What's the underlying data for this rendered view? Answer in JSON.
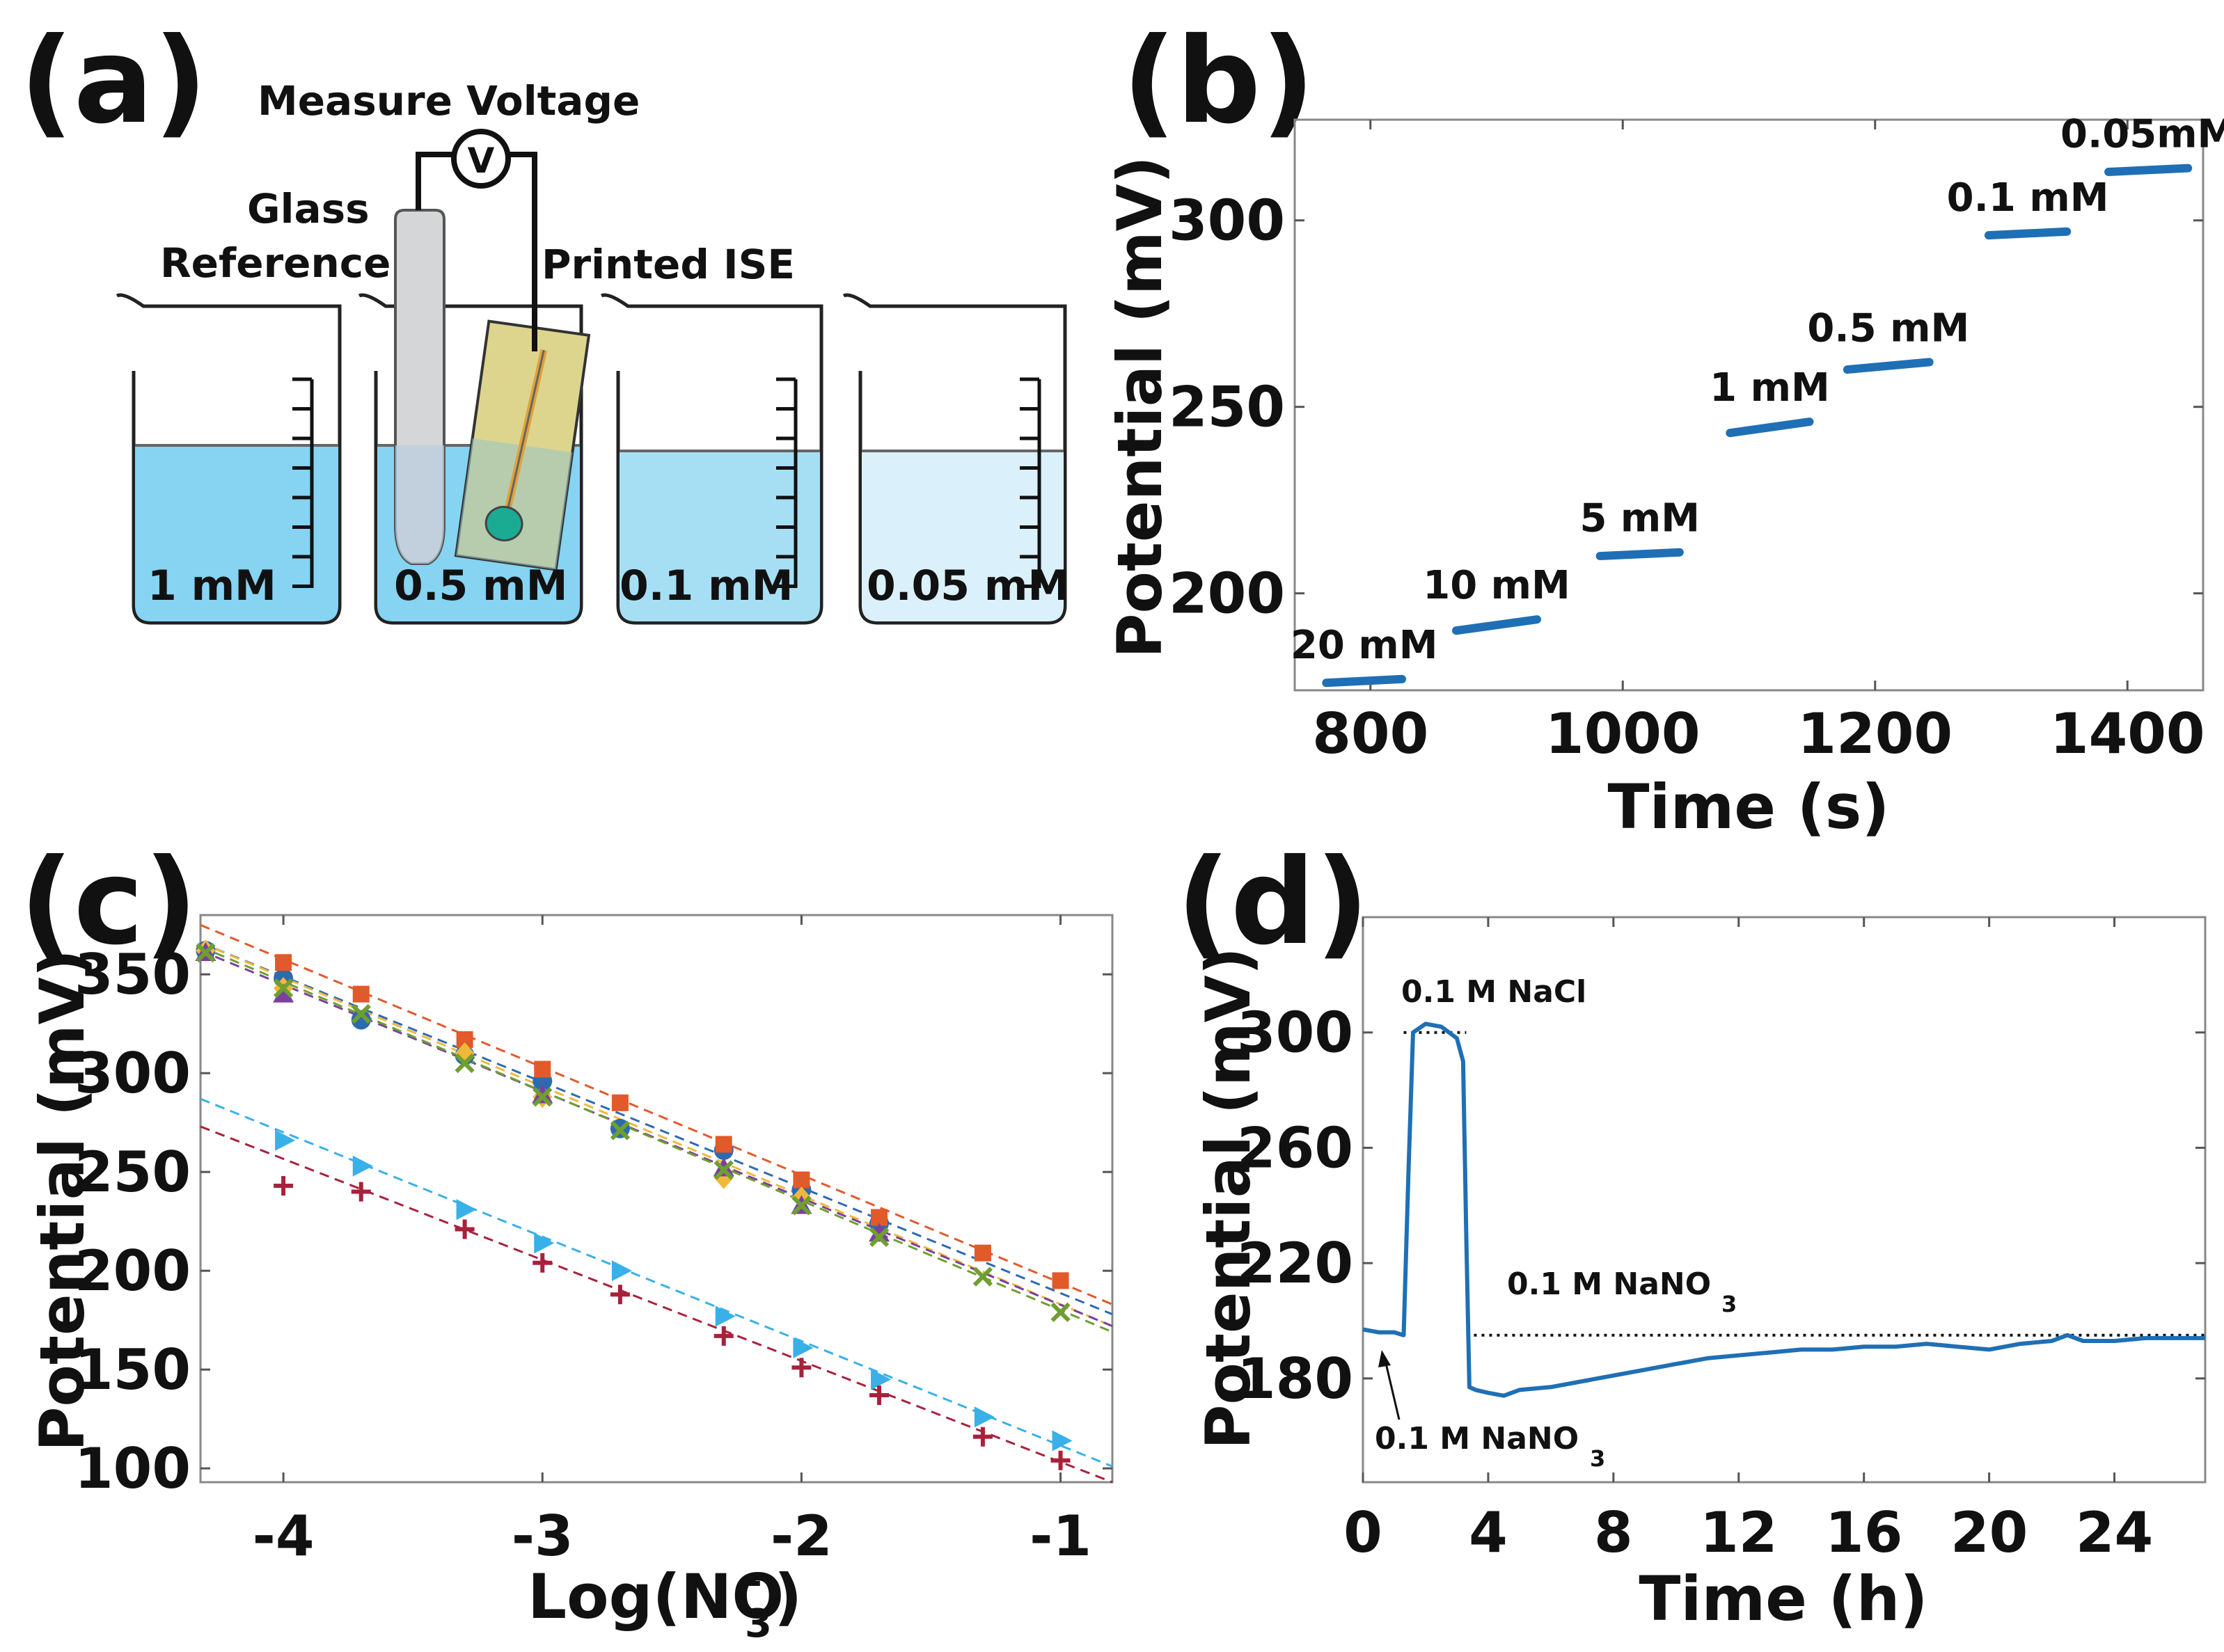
{
  "panels": {
    "a": {
      "letter": "(a)"
    },
    "b": {
      "letter": "(b)"
    },
    "c": {
      "letter": "(c)"
    },
    "d": {
      "letter": "(d)"
    }
  },
  "diagram": {
    "measure_label": "Measure Voltage",
    "voltmeter_symbol": "V",
    "glass_label_1": "Glass",
    "glass_label_2": "Reference",
    "ise_label": "Printed ISE",
    "beakers": [
      "1 mM",
      "0.5 mM",
      "0.1 mM",
      "0.05 mM"
    ],
    "colors": {
      "solution_dark": "#86d3f2",
      "solution_mid": "#a6dff4",
      "solution_light": "#daf1fb",
      "electrode": "#d5d6d8",
      "ise_body": "#ddd58e",
      "ise_tip": "#1bab93"
    }
  },
  "chart_data": [
    {
      "panel": "b",
      "type": "line",
      "xlabel": "Time (s)",
      "ylabel": "Potential (mV)",
      "xlim": [
        740,
        1460
      ],
      "ylim": [
        174,
        327
      ],
      "xticks": [
        800,
        1000,
        1200,
        1400
      ],
      "yticks": [
        200,
        250,
        300
      ],
      "color": "#1f6fb5",
      "segments": [
        {
          "label": "20 mM",
          "x": [
            765,
            825
          ],
          "y": [
            176,
            177
          ]
        },
        {
          "label": "10 mM",
          "x": [
            868,
            932
          ],
          "y": [
            190,
            193
          ]
        },
        {
          "label": "5 mM",
          "x": [
            982,
            1045
          ],
          "y": [
            210,
            211
          ]
        },
        {
          "label": "1 mM",
          "x": [
            1085,
            1148
          ],
          "y": [
            243,
            246
          ]
        },
        {
          "label": "0.5 mM",
          "x": [
            1178,
            1243
          ],
          "y": [
            260,
            262
          ]
        },
        {
          "label": "0.1 mM",
          "x": [
            1290,
            1352
          ],
          "y": [
            296,
            297
          ]
        },
        {
          "label": "0.05mM",
          "x": [
            1385,
            1448
          ],
          "y": [
            313,
            314
          ]
        }
      ]
    },
    {
      "panel": "c",
      "type": "scatter",
      "xlabel": "Log(NO",
      "xlabel_sub": "3",
      "xlabel_sup": "-",
      "xlabel_end": ")",
      "ylabel": "Potential (mV)",
      "xlim": [
        -4.32,
        -0.8
      ],
      "ylim": [
        93,
        380
      ],
      "xticks": [
        -4,
        -3,
        -2,
        -1
      ],
      "yticks": [
        100,
        150,
        200,
        250,
        300,
        350
      ],
      "series": [
        {
          "marker": "circle",
          "color": "#2d6ab0",
          "x": [
            -4.3,
            -4,
            -3.7,
            -3.3,
            -3,
            -2.7,
            -2.3,
            -2,
            -1.7
          ],
          "y": [
            362,
            348,
            327,
            309,
            296,
            272,
            261,
            241,
            224
          ],
          "fit": [
            -4.32,
            366,
            -0.8,
            178
          ]
        },
        {
          "marker": "square",
          "color": "#e2592a",
          "x": [
            -4,
            -3.7,
            -3.3,
            -3,
            -2.7,
            -2.3,
            -2,
            -1.7,
            -1.3,
            -1
          ],
          "y": [
            356,
            340,
            317,
            302,
            285,
            264,
            246,
            227,
            209,
            195
          ],
          "fit": [
            -4.32,
            375,
            -0.8,
            183
          ]
        },
        {
          "marker": "diamond",
          "color": "#f0b83a",
          "x": [
            -4.3,
            -4,
            -3.3,
            -3,
            -2.3,
            -2
          ],
          "y": [
            362,
            343,
            310,
            288,
            247,
            237
          ],
          "fit": [
            -4.32,
            366,
            -0.8,
            172
          ]
        },
        {
          "marker": "triangle-up",
          "color": "#7b3f9f",
          "x": [
            -4.3,
            -4,
            -3,
            -2.3,
            -2,
            -1.7
          ],
          "y": [
            361,
            340,
            289,
            252,
            233,
            219
          ],
          "fit": [
            -4.32,
            362,
            -0.8,
            172
          ]
        },
        {
          "marker": "x",
          "color": "#6f9e31",
          "x": [
            -4.3,
            -4,
            -3.7,
            -3.3,
            -3,
            -2.7,
            -2.3,
            -2,
            -1.7,
            -1.3,
            -1
          ],
          "y": [
            361,
            343,
            330,
            305,
            288,
            271,
            251,
            233,
            217,
            197,
            179
          ],
          "fit": [
            -4.32,
            364,
            -0.8,
            169
          ]
        },
        {
          "marker": "triangle-right",
          "color": "#39b0e8",
          "x": [
            -4,
            -3.7,
            -3.3,
            -3,
            -2.7,
            -2.3,
            -2,
            -1.7,
            -1.3,
            -1
          ],
          "y": [
            266,
            253,
            231,
            214,
            200,
            177,
            161,
            145,
            126,
            114
          ],
          "fit": [
            -4.32,
            287,
            -0.8,
            101
          ]
        },
        {
          "marker": "plus",
          "color": "#a8213b",
          "x": [
            -4,
            -3.7,
            -3.3,
            -3,
            -2.7,
            -2.3,
            -2,
            -1.7,
            -1.3,
            -1
          ],
          "y": [
            243,
            240,
            221,
            204,
            188,
            167,
            151,
            137,
            116,
            104
          ],
          "fit": [
            -4.32,
            273,
            -0.8,
            93
          ]
        }
      ]
    },
    {
      "panel": "d",
      "type": "line",
      "xlabel": "Time (h)",
      "ylabel": "Potential (mV)",
      "xlim": [
        0,
        26.9
      ],
      "ylim": [
        144,
        340
      ],
      "xticks": [
        0,
        4,
        8,
        12,
        16,
        20,
        24
      ],
      "yticks": [
        180,
        220,
        260,
        300
      ],
      "color": "#1f6fb5",
      "trace": {
        "x": [
          0,
          0.5,
          1.0,
          1.3,
          1.45,
          1.6,
          2.0,
          2.5,
          3.0,
          3.2,
          3.3,
          3.4,
          3.6,
          4.0,
          4.5,
          5.0,
          6.0,
          7.0,
          8.0,
          9.0,
          10.0,
          11.0,
          12.0,
          13.0,
          14.0,
          15.0,
          16.0,
          17.0,
          18.0,
          19.0,
          20.0,
          21.0,
          22.0,
          22.5,
          23.0,
          24.0,
          25.0,
          26.0,
          26.9
        ],
        "y": [
          197,
          196,
          196,
          195,
          250,
          300,
          303,
          302,
          298,
          290,
          230,
          177,
          176,
          175,
          174,
          176,
          177,
          179,
          181,
          183,
          185,
          187,
          188,
          189,
          190,
          190,
          191,
          191,
          192,
          191,
          190,
          192,
          193,
          195,
          193,
          193,
          194,
          194,
          194
        ]
      },
      "reference_lines": [
        {
          "y": 300,
          "x_from": 1.3,
          "x_to": 3.3
        },
        {
          "y": 195,
          "x_from": 3.3,
          "x_to": 26.9
        }
      ],
      "annotations": {
        "nacl": "0.1 M NaCl",
        "nano3_top": "0.1 M NaNO",
        "nano3_bottom": "0.1 M NaNO",
        "subscript": "3"
      }
    }
  ]
}
